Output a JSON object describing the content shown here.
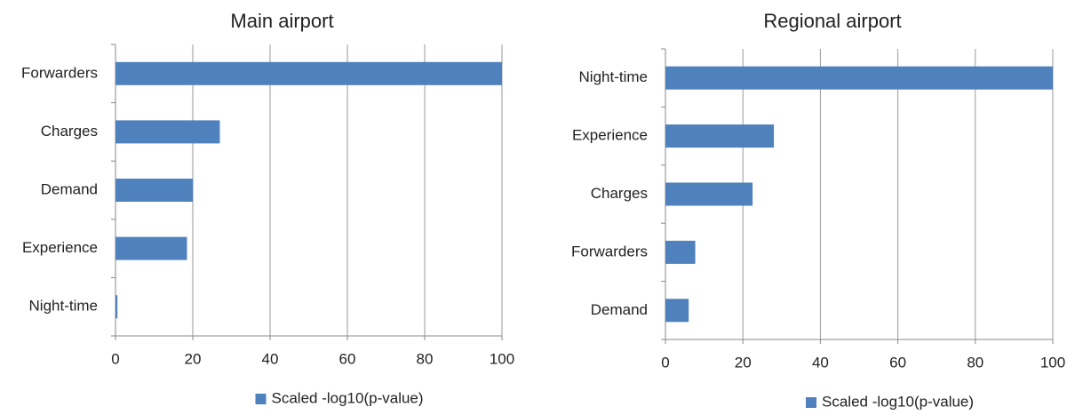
{
  "chart_data": [
    {
      "type": "barh",
      "title": "Main airport",
      "categories": [
        "Forwarders",
        "Charges",
        "Demand",
        "Experience",
        "Night-time"
      ],
      "series": [
        {
          "name": "Scaled -log10(p-value)",
          "color": "#4f81bd",
          "values": [
            100,
            27,
            20,
            18.5,
            0.5
          ]
        }
      ],
      "xlim": [
        0,
        100
      ],
      "xticks": [
        0,
        20,
        40,
        60,
        80,
        100
      ],
      "grid": true
    },
    {
      "type": "barh",
      "title": "Regional airport",
      "categories": [
        "Night-time",
        "Experience",
        "Charges",
        "Forwarders",
        "Demand"
      ],
      "series": [
        {
          "name": "Scaled -log10(p-value)",
          "color": "#4f81bd",
          "values": [
            100,
            28,
            22.5,
            7.7,
            6
          ]
        }
      ],
      "xlim": [
        0,
        100
      ],
      "xticks": [
        0,
        20,
        40,
        60,
        80,
        100
      ],
      "grid": true
    }
  ]
}
